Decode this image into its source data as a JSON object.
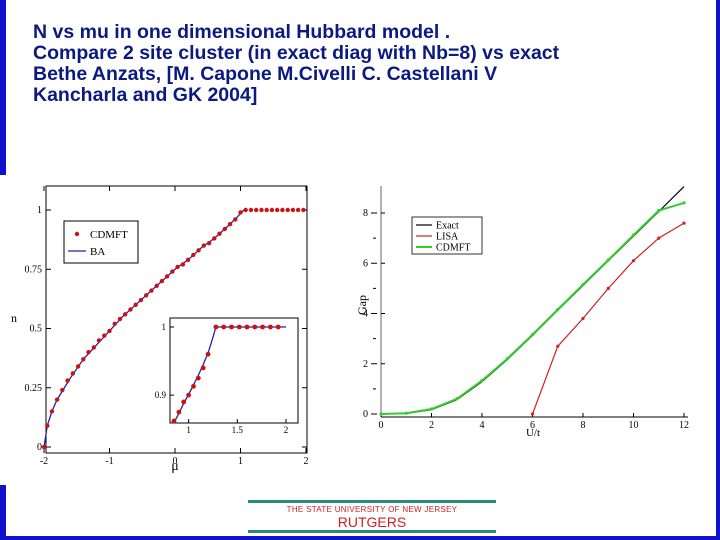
{
  "title_lines": [
    "N vs mu in one dimensional Hubbard model .",
    "Compare 2 site cluster (in exact diag with Nb=8) vs exact",
    "Bethe Anzats, [M. Capone M.Civelli C. Castellani V",
    "Kancharla and GK  2004]"
  ],
  "footer": {
    "university": "THE STATE UNIVERSITY OF NEW JERSEY",
    "wordmark": "RUTGERS"
  },
  "colors": {
    "title": "#0a1a80",
    "border": "#1111cc",
    "cdmft_marker": "#cc1111",
    "ba_line": "#2222aa",
    "lisa": "#cc2222",
    "cdmft_line": "#33cc33",
    "exact": "#000000"
  },
  "chart_data": [
    {
      "type": "scatter",
      "xlabel": "μ",
      "ylabel": "n",
      "xlim": [
        -2,
        2
      ],
      "ylim": [
        0,
        1.1
      ],
      "x_ticks": [
        "-2",
        "-1",
        "0",
        "1",
        "2"
      ],
      "y_ticks": [
        "0",
        "0.25",
        "0.5",
        "0.75",
        "1"
      ],
      "legend": [
        "CDMFT",
        "BA"
      ],
      "legend_position": "top-left",
      "series": [
        {
          "name": "CDMFT",
          "style": "markers",
          "x": [
            -2.0,
            -1.95,
            -1.88,
            -1.8,
            -1.72,
            -1.64,
            -1.56,
            -1.48,
            -1.4,
            -1.32,
            -1.24,
            -1.16,
            -1.08,
            -1.0,
            -0.92,
            -0.84,
            -0.76,
            -0.68,
            -0.6,
            -0.52,
            -0.44,
            -0.36,
            -0.28,
            -0.2,
            -0.12,
            -0.04,
            0.04,
            0.12,
            0.2,
            0.28,
            0.36,
            0.44,
            0.52,
            0.6,
            0.68,
            0.76,
            0.84,
            0.92,
            1.0,
            1.08,
            1.16,
            1.24,
            1.32,
            1.4,
            1.48,
            1.56,
            1.64,
            1.72,
            1.8,
            1.88,
            1.96
          ],
          "y": [
            0.0,
            0.09,
            0.15,
            0.2,
            0.24,
            0.28,
            0.31,
            0.34,
            0.37,
            0.4,
            0.42,
            0.45,
            0.47,
            0.49,
            0.52,
            0.54,
            0.56,
            0.58,
            0.6,
            0.62,
            0.64,
            0.66,
            0.68,
            0.7,
            0.72,
            0.74,
            0.76,
            0.77,
            0.79,
            0.81,
            0.83,
            0.85,
            0.86,
            0.88,
            0.9,
            0.92,
            0.94,
            0.96,
            0.99,
            1.0,
            1.0,
            1.0,
            1.0,
            1.0,
            1.0,
            1.0,
            1.0,
            1.0,
            1.0,
            1.0,
            1.0
          ]
        },
        {
          "name": "BA",
          "style": "line",
          "x": [
            -2.0,
            -1.95,
            -1.88,
            -1.8,
            -1.6,
            -1.4,
            -1.2,
            -1.0,
            -0.8,
            -0.6,
            -0.4,
            -0.2,
            0.0,
            0.2,
            0.4,
            0.6,
            0.8,
            0.95,
            1.05
          ],
          "y": [
            0.0,
            0.09,
            0.15,
            0.2,
            0.29,
            0.37,
            0.43,
            0.49,
            0.55,
            0.6,
            0.65,
            0.7,
            0.75,
            0.79,
            0.84,
            0.88,
            0.93,
            0.97,
            1.0
          ]
        }
      ],
      "inset": {
        "xlim": [
          0.8,
          2
        ],
        "ylim": [
          0.85,
          1.03
        ],
        "x_ticks": [
          "1",
          "1.5",
          "2"
        ],
        "y_ticks": [
          "0.9",
          "1"
        ],
        "cdmft_x": [
          0.85,
          0.9,
          0.95,
          1.0,
          1.05,
          1.1,
          1.15,
          1.2,
          1.28,
          1.36,
          1.44,
          1.52,
          1.6,
          1.68,
          1.76,
          1.84,
          1.92
        ],
        "cdmft_y": [
          0.862,
          0.875,
          0.89,
          0.9,
          0.913,
          0.925,
          0.94,
          0.96,
          1.0,
          1.0,
          1.0,
          1.0,
          1.0,
          1.0,
          1.0,
          1.0,
          1.0
        ],
        "ba_x": [
          0.85,
          0.9,
          0.95,
          1.0,
          1.05,
          1.1,
          1.15,
          1.2,
          1.25,
          1.28
        ],
        "ba_y": [
          0.86,
          0.873,
          0.888,
          0.901,
          0.915,
          0.929,
          0.945,
          0.962,
          0.985,
          1.0
        ]
      }
    },
    {
      "type": "line",
      "xlabel": "U/t",
      "ylabel": "Gap",
      "xlim": [
        0,
        12
      ],
      "ylim": [
        0,
        8.5
      ],
      "x_ticks": [
        "0",
        "2",
        "4",
        "6",
        "8",
        "10",
        "12"
      ],
      "y_ticks": [
        "0",
        "2",
        "4",
        "6",
        "8"
      ],
      "legend": [
        "Exact",
        "LISA",
        "CDMFT"
      ],
      "legend_position": "top-left",
      "series": [
        {
          "name": "Exact",
          "x": [
            0,
            1,
            2,
            3,
            4,
            5,
            6,
            7,
            8,
            9,
            10,
            11,
            12
          ],
          "y": [
            0.0,
            0.02,
            0.17,
            0.57,
            1.29,
            2.17,
            3.13,
            4.13,
            5.12,
            6.1,
            7.08,
            8.06,
            9.05
          ]
        },
        {
          "name": "LISA",
          "x": [
            6,
            7,
            8,
            9,
            10,
            11,
            12
          ],
          "y": [
            0.0,
            2.7,
            3.8,
            5.0,
            6.1,
            7.0,
            7.6
          ]
        },
        {
          "name": "CDMFT",
          "x": [
            0,
            1,
            2,
            3,
            4,
            5,
            6,
            7,
            8,
            9,
            10,
            11,
            12
          ],
          "y": [
            0.0,
            0.03,
            0.2,
            0.6,
            1.33,
            2.2,
            3.16,
            4.16,
            5.15,
            6.13,
            7.12,
            8.1,
            8.4
          ]
        }
      ]
    }
  ]
}
